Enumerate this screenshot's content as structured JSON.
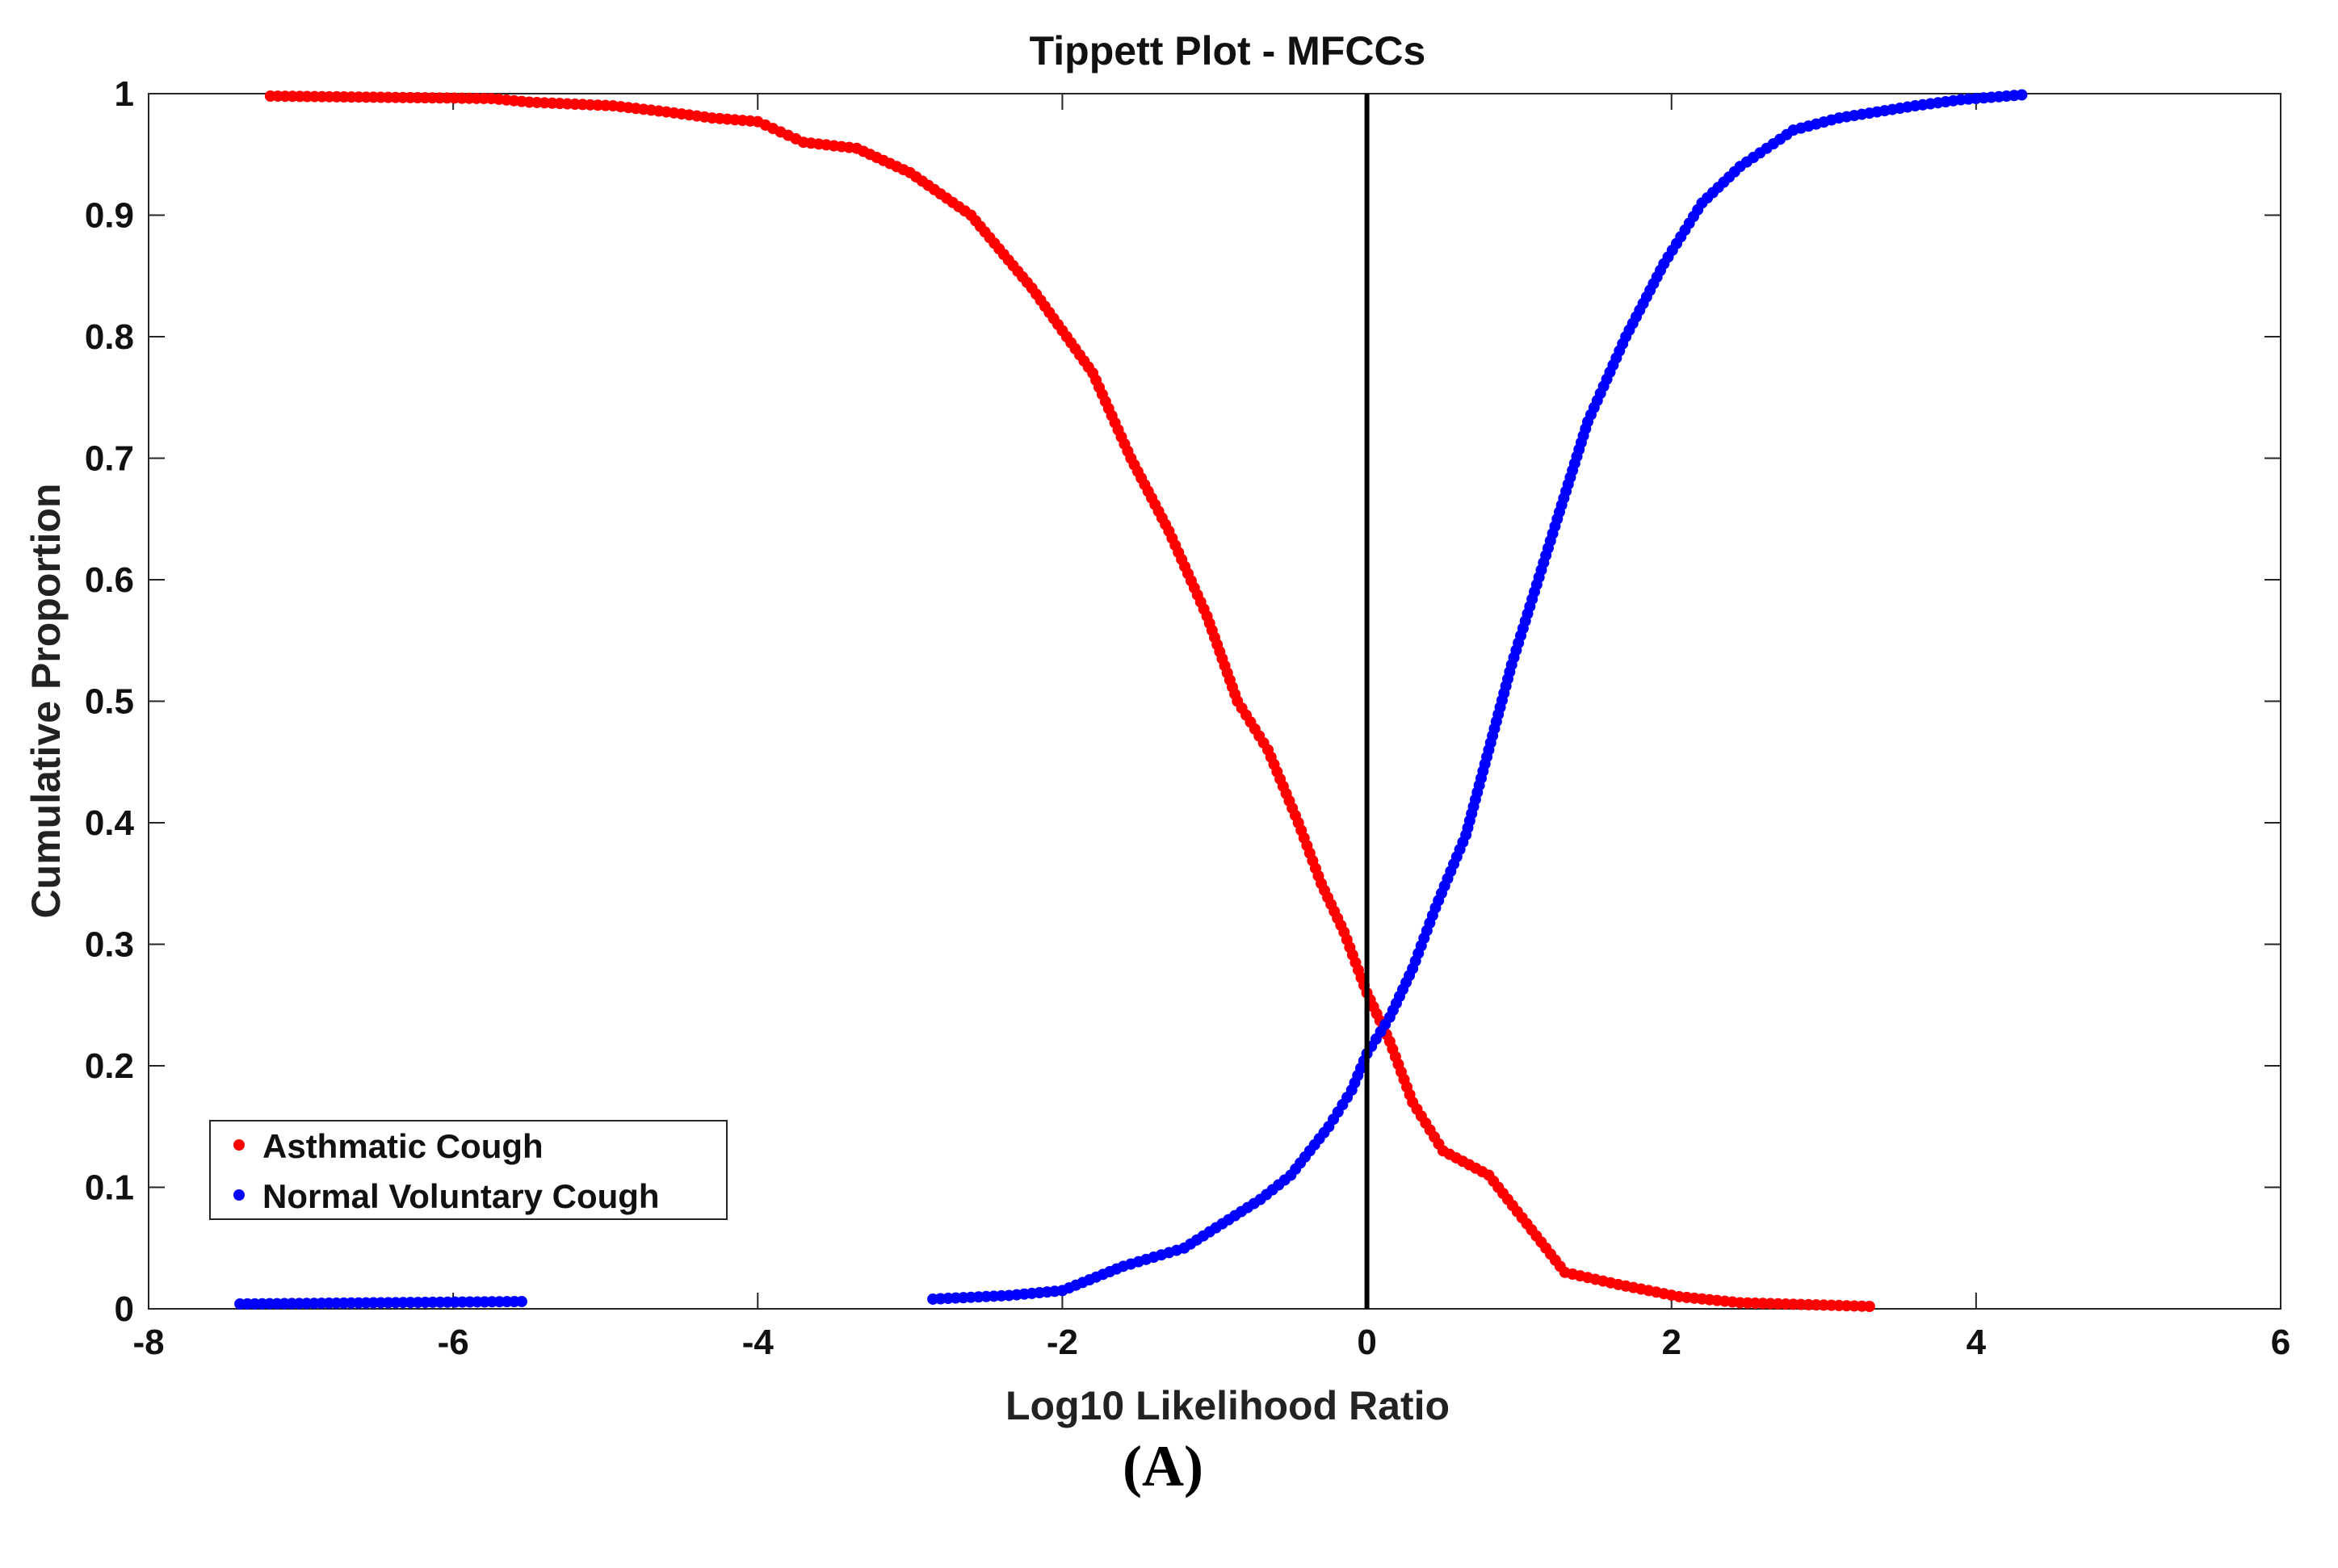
{
  "panel_label": "(A)",
  "chart_data": {
    "type": "scatter",
    "title": "Tippett Plot - MFCCs",
    "xlabel": "Log10 Likelihood Ratio",
    "ylabel": "Cumulative Proportion",
    "xlim": [
      -8,
      6
    ],
    "ylim": [
      0,
      1
    ],
    "xticks": [
      -8,
      -6,
      -4,
      -2,
      0,
      2,
      4,
      6
    ],
    "xtick_labels": [
      "-8",
      "-6",
      "-4",
      "-2",
      "0",
      "2",
      "4",
      "6"
    ],
    "yticks": [
      0,
      0.1,
      0.2,
      0.3,
      0.4,
      0.5,
      0.6,
      0.7,
      0.8,
      0.9,
      1
    ],
    "ytick_labels": [
      "0",
      "0.1",
      "0.2",
      "0.3",
      "0.4",
      "0.5",
      "0.6",
      "0.7",
      "0.8",
      "0.9",
      "1"
    ],
    "grid": false,
    "legend_position": "bottom-left",
    "reference_line": {
      "x": 0,
      "color": "#000000"
    },
    "series": [
      {
        "name": "Asthmatic Cough",
        "color": "#ff0000",
        "points": [
          [
            -7.2,
            0.998
          ],
          [
            -5.75,
            0.996
          ],
          [
            -5.5,
            0.993
          ],
          [
            -4.95,
            0.99
          ],
          [
            -4.6,
            0.985
          ],
          [
            -4.3,
            0.98
          ],
          [
            -4.0,
            0.977
          ],
          [
            -3.7,
            0.96
          ],
          [
            -3.35,
            0.955
          ],
          [
            -3.0,
            0.935
          ],
          [
            -2.6,
            0.9
          ],
          [
            -2.2,
            0.84
          ],
          [
            -1.8,
            0.77
          ],
          [
            -1.55,
            0.7
          ],
          [
            -1.3,
            0.64
          ],
          [
            -1.05,
            0.57
          ],
          [
            -0.85,
            0.5
          ],
          [
            -0.65,
            0.46
          ],
          [
            -0.45,
            0.4
          ],
          [
            -0.3,
            0.35
          ],
          [
            -0.15,
            0.31
          ],
          [
            0.0,
            0.26
          ],
          [
            0.15,
            0.22
          ],
          [
            0.3,
            0.17
          ],
          [
            0.5,
            0.13
          ],
          [
            0.8,
            0.11
          ],
          [
            1.05,
            0.07
          ],
          [
            1.3,
            0.03
          ],
          [
            1.65,
            0.02
          ],
          [
            2.05,
            0.01
          ],
          [
            2.45,
            0.005
          ],
          [
            3.3,
            0.002
          ]
        ]
      },
      {
        "name": "Normal Voluntary Cough",
        "color": "#0000ff",
        "points": [
          [
            -7.4,
            0.004
          ],
          [
            -5.55,
            0.006
          ],
          [
            -2.85,
            0.008
          ],
          [
            -2.35,
            0.011
          ],
          [
            -2.0,
            0.015
          ],
          [
            -1.6,
            0.035
          ],
          [
            -1.2,
            0.05
          ],
          [
            -0.95,
            0.07
          ],
          [
            -0.7,
            0.09
          ],
          [
            -0.5,
            0.11
          ],
          [
            -0.25,
            0.15
          ],
          [
            -0.1,
            0.18
          ],
          [
            0.0,
            0.21
          ],
          [
            0.15,
            0.24
          ],
          [
            0.3,
            0.28
          ],
          [
            0.45,
            0.33
          ],
          [
            0.65,
            0.39
          ],
          [
            0.8,
            0.46
          ],
          [
            0.95,
            0.53
          ],
          [
            1.1,
            0.59
          ],
          [
            1.25,
            0.65
          ],
          [
            1.45,
            0.73
          ],
          [
            1.7,
            0.8
          ],
          [
            1.95,
            0.86
          ],
          [
            2.2,
            0.91
          ],
          [
            2.45,
            0.94
          ],
          [
            2.8,
            0.97
          ],
          [
            3.1,
            0.98
          ],
          [
            3.6,
            0.99
          ],
          [
            3.9,
            0.995
          ],
          [
            4.3,
            0.999
          ]
        ]
      }
    ]
  }
}
